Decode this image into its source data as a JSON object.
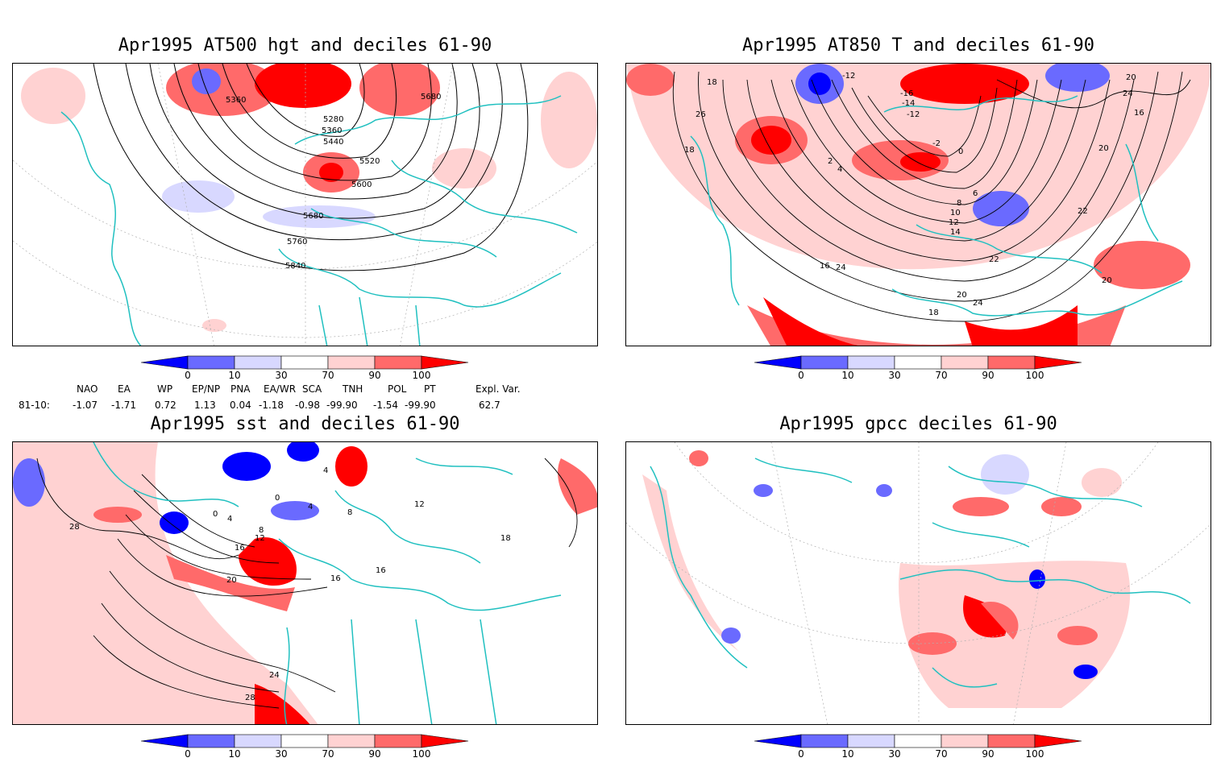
{
  "panels": [
    {
      "title": "Apr1995 AT500 hgt and deciles 61-90",
      "contour_labels": [
        "5360",
        "5280",
        "5360",
        "5440",
        "5520",
        "5600",
        "5680",
        "5760",
        "5840",
        "5680"
      ]
    },
    {
      "title": "Apr1995 AT850 T and deciles 61-90",
      "contour_labels": [
        "-12",
        "-16",
        "-14",
        "-12",
        "-2",
        "0",
        "2",
        "4",
        "6",
        "8",
        "10",
        "12",
        "14",
        "16",
        "18",
        "20",
        "24",
        "22",
        "26",
        "18",
        "18",
        "20",
        "20",
        "24",
        "22",
        "24",
        "16",
        "20"
      ]
    },
    {
      "title": "Apr1995 sst and deciles 61-90",
      "contour_labels": [
        "28",
        "0",
        "4",
        "8",
        "12",
        "16",
        "20",
        "24",
        "28",
        "16",
        "16",
        "4",
        "0",
        "4",
        "8",
        "12",
        "18"
      ]
    },
    {
      "title": "Apr1995 gpcc deciles 61-90",
      "contour_labels": []
    }
  ],
  "colorbar": {
    "ticks": [
      "0",
      "10",
      "30",
      "70",
      "90",
      "100"
    ],
    "colors": [
      "#0000ff",
      "#6a6aff",
      "#d8d8ff",
      "#ffffff",
      "#ffd2d2",
      "#ff6a6a",
      "#ff0000"
    ]
  },
  "indices": {
    "row_label": "81-10:",
    "names": [
      "NAO",
      "EA",
      "WP",
      "EP/NP",
      "PNA",
      "EA/WR",
      "SCA",
      "TNH",
      "POL",
      "PT",
      "Expl. Var."
    ],
    "values": [
      "-1.07",
      "-1.71",
      "0.72",
      "1.13",
      "0.04",
      "-1.18",
      "-0.98",
      "-99.90",
      "-1.54",
      "-99.90",
      "62.7"
    ]
  },
  "colors": {
    "coast": "#20c0c0",
    "contour": "#000000",
    "warm": "#ff0000",
    "cold": "#0000ff",
    "grid": "#b0b0b0"
  }
}
